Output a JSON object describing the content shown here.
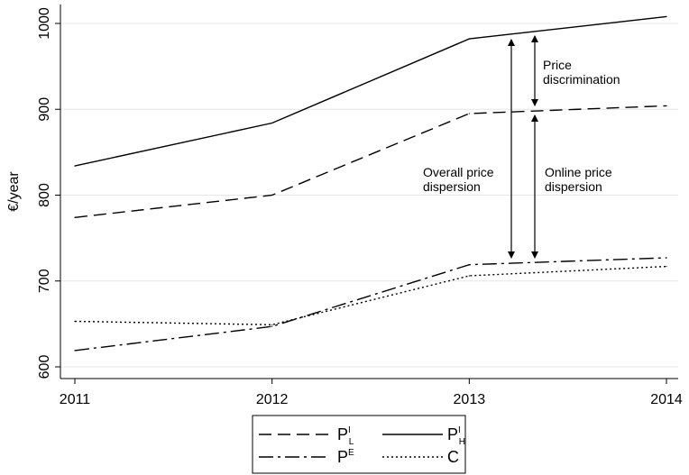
{
  "chart_data": {
    "type": "line",
    "x": [
      2011,
      2012,
      2013,
      2014
    ],
    "ylabel": "€/year",
    "xlabel": "",
    "ylim": [
      600,
      1000
    ],
    "yticks": [
      600,
      700,
      800,
      900,
      1000
    ],
    "xticks": [
      2011,
      2012,
      2013,
      2014
    ],
    "grid": true,
    "legend_position": "bottom",
    "series": [
      {
        "id": "PIL",
        "main": "P",
        "sup": "I",
        "sub": "L",
        "style": "dashed",
        "values": [
          774,
          800,
          895,
          904
        ]
      },
      {
        "id": "PIH",
        "main": "P",
        "sup": "I",
        "sub": "H",
        "style": "solid",
        "values": [
          834,
          884,
          982,
          1008
        ]
      },
      {
        "id": "PE",
        "main": "P",
        "sup": "E",
        "sub": "",
        "style": "dashdot",
        "values": [
          619,
          647,
          719,
          727
        ]
      },
      {
        "id": "C",
        "main": "C",
        "sup": "",
        "sub": "",
        "style": "dotted",
        "values": [
          653,
          649,
          706,
          717
        ]
      }
    ],
    "annotations": {
      "price_discrimination": [
        "Price",
        "discrimination"
      ],
      "overall_dispersion": [
        "Overall price",
        "dispersion"
      ],
      "online_dispersion": [
        "Online price",
        "dispersion"
      ]
    }
  }
}
